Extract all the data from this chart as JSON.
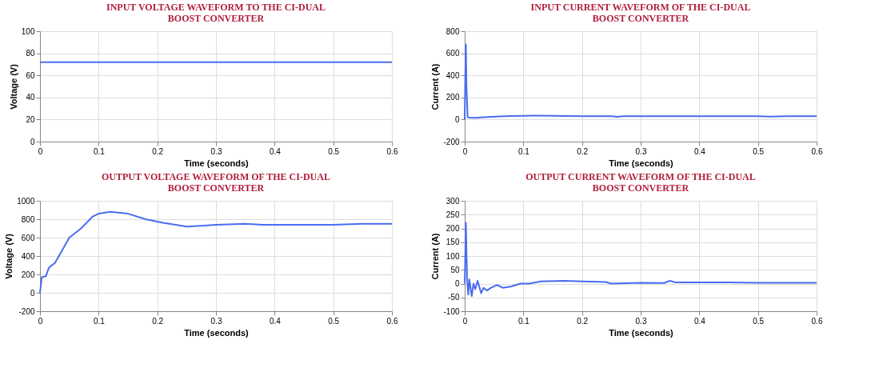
{
  "chart_data": [
    {
      "type": "line",
      "title": "INPUT VOLTAGE WAVEFORM TO THE CI-DUAL\nBOOST CONVERTER",
      "xlabel": "Time (seconds)",
      "ylabel": "Voltage (V)",
      "x": [
        0,
        0.6
      ],
      "series": [
        {
          "color": "#4a6cf0",
          "values": [
            72,
            72
          ]
        }
      ],
      "xlim": [
        0,
        0.6
      ],
      "xticks": [
        0,
        0.1,
        0.2,
        0.3,
        0.4,
        0.5,
        0.6
      ],
      "ylim": [
        0,
        100
      ],
      "yticks": [
        0,
        20,
        40,
        60,
        80,
        100
      ],
      "grid": true
    },
    {
      "type": "line",
      "title": "INPUT CURRENT WAVEFORM OF THE  CI-DUAL\nBOOST CONVERTER",
      "xlabel": "Time (seconds)",
      "ylabel": "Current (A)",
      "x": [
        0,
        0.001,
        0.002,
        0.003,
        0.005,
        0.01,
        0.02,
        0.04,
        0.06,
        0.08,
        0.1,
        0.12,
        0.15,
        0.2,
        0.25,
        0.26,
        0.27,
        0.3,
        0.35,
        0.4,
        0.45,
        0.5,
        0.52,
        0.55,
        0.6
      ],
      "series": [
        {
          "color": "#4a6cf0",
          "values": [
            0,
            400,
            680,
            300,
            20,
            15,
            15,
            22,
            28,
            32,
            34,
            35,
            33,
            30,
            30,
            25,
            30,
            30,
            30,
            30,
            30,
            30,
            27,
            30,
            30
          ]
        }
      ],
      "xlim": [
        0,
        0.6
      ],
      "xticks": [
        0,
        0.1,
        0.2,
        0.3,
        0.4,
        0.5,
        0.6
      ],
      "ylim": [
        -200,
        800
      ],
      "yticks": [
        -200,
        0,
        200,
        400,
        600,
        800
      ],
      "grid": true
    },
    {
      "type": "line",
      "title": "OUTPUT VOLTAGE WAVEFORM OF THE  CI-DUAL\nBOOST CONVERTER",
      "xlabel": "Time (seconds)",
      "ylabel": "Voltage (V)",
      "x": [
        0,
        0.003,
        0.01,
        0.015,
        0.02,
        0.025,
        0.035,
        0.05,
        0.07,
        0.09,
        0.1,
        0.12,
        0.15,
        0.18,
        0.21,
        0.24,
        0.25,
        0.28,
        0.3,
        0.35,
        0.38,
        0.42,
        0.5,
        0.55,
        0.6
      ],
      "series": [
        {
          "color": "#4a6cf0",
          "values": [
            0,
            170,
            180,
            270,
            300,
            320,
            430,
            600,
            700,
            830,
            860,
            880,
            860,
            800,
            760,
            730,
            720,
            730,
            740,
            750,
            740,
            740,
            740,
            750,
            750
          ]
        }
      ],
      "xlim": [
        0,
        0.6
      ],
      "xticks": [
        0,
        0.1,
        0.2,
        0.3,
        0.4,
        0.5,
        0.6
      ],
      "ylim": [
        -200,
        1000
      ],
      "yticks": [
        -200,
        0,
        200,
        400,
        600,
        800,
        1000
      ],
      "grid": true
    },
    {
      "type": "line",
      "title": "OUTPUT CURRENT WAVEFORM OF THE  CI-DUAL\nBOOST CONVERTER",
      "xlabel": "Time (seconds)",
      "ylabel": "Current (A)",
      "x": [
        0,
        0.002,
        0.004,
        0.006,
        0.008,
        0.012,
        0.015,
        0.018,
        0.022,
        0.028,
        0.032,
        0.038,
        0.045,
        0.055,
        0.065,
        0.08,
        0.095,
        0.11,
        0.13,
        0.17,
        0.2,
        0.24,
        0.25,
        0.3,
        0.34,
        0.35,
        0.36,
        0.45,
        0.5,
        0.6
      ],
      "series": [
        {
          "color": "#4a6cf0",
          "values": [
            0,
            220,
            20,
            -40,
            15,
            -45,
            0,
            -20,
            10,
            -35,
            -15,
            -25,
            -15,
            -5,
            -15,
            -10,
            0,
            0,
            8,
            10,
            8,
            6,
            0,
            3,
            2,
            10,
            4,
            4,
            3,
            3
          ]
        }
      ],
      "xlim": [
        0,
        0.6
      ],
      "xticks": [
        0,
        0.1,
        0.2,
        0.3,
        0.4,
        0.5,
        0.6
      ],
      "ylim": [
        -100,
        300
      ],
      "yticks": [
        -100,
        -50,
        0,
        50,
        100,
        150,
        200,
        250,
        300
      ],
      "grid": true
    }
  ]
}
